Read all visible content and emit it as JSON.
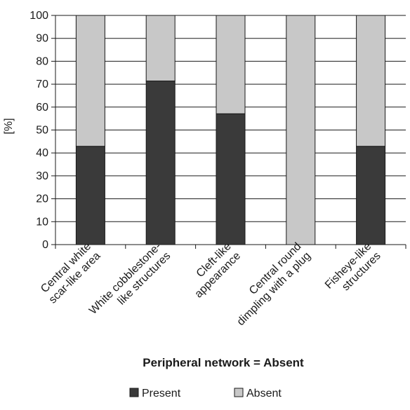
{
  "chart_data": {
    "type": "bar",
    "stacked": true,
    "title": "",
    "xlabel": "Peripheral network = Absent",
    "ylabel": "[%]",
    "ylim": [
      0,
      100
    ],
    "yticks": [
      0,
      10,
      20,
      30,
      40,
      50,
      60,
      70,
      80,
      90,
      100
    ],
    "grid": true,
    "legend_position": "bottom",
    "categories": [
      [
        "Central white",
        "scar-like area"
      ],
      [
        "White cobblestone-",
        "like structures"
      ],
      [
        "Cleft-like",
        "appearance"
      ],
      [
        "Central round",
        "dimpling with a plug"
      ],
      [
        "Fisheye-like",
        "structures"
      ]
    ],
    "series": [
      {
        "name": "Present",
        "color": "#3a3a3a",
        "values": [
          42.9,
          71.4,
          57.1,
          0,
          42.9
        ]
      },
      {
        "name": "Absent",
        "color": "#c8c8c8",
        "values": [
          57.1,
          28.6,
          42.9,
          100,
          57.1
        ]
      }
    ]
  }
}
